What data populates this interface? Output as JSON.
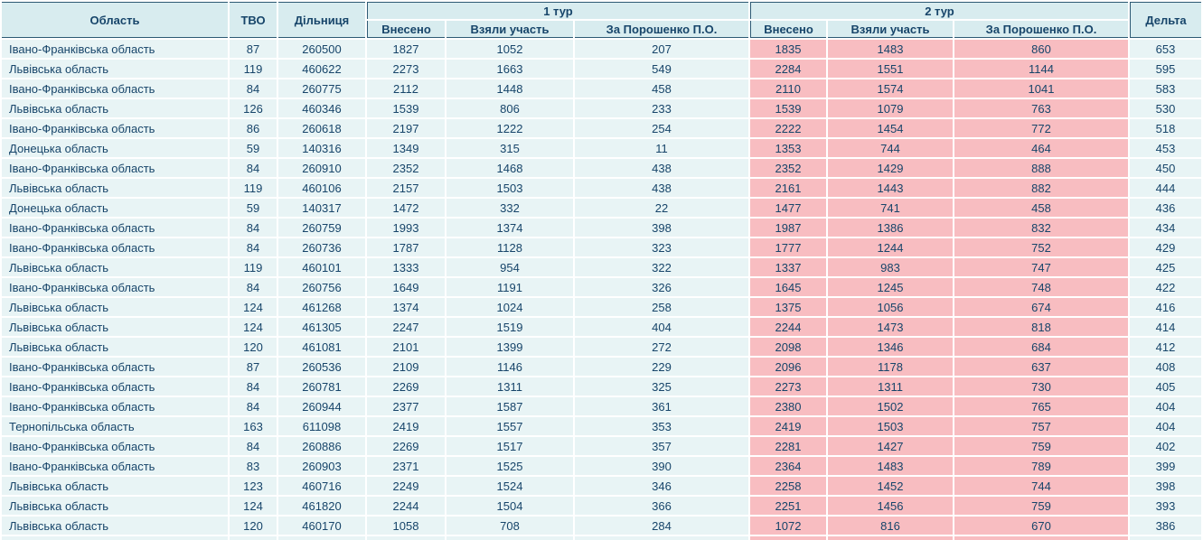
{
  "table": {
    "header": {
      "oblast": "Область",
      "tvo": "ТВО",
      "dilnytsia": "Дільниця",
      "tour1": "1 тур",
      "tour2": "2 тур",
      "vneseno1": "Внесено",
      "vzialy_uchast1": "Взяли участь",
      "za_poroshenko1": "За Порошенко П.О.",
      "vneseno2": "Внесено",
      "vzialy_uchast2": "Взяли участь",
      "za_poroshenko2": "За Порошенко П.О.",
      "delta": "Дельта"
    },
    "rows": [
      [
        "Івано-Франківська область",
        "87",
        "260500",
        "1827",
        "1052",
        "207",
        "1835",
        "1483",
        "860",
        "653"
      ],
      [
        "Львівська область",
        "119",
        "460622",
        "2273",
        "1663",
        "549",
        "2284",
        "1551",
        "1144",
        "595"
      ],
      [
        "Івано-Франківська область",
        "84",
        "260775",
        "2112",
        "1448",
        "458",
        "2110",
        "1574",
        "1041",
        "583"
      ],
      [
        "Львівська область",
        "126",
        "460346",
        "1539",
        "806",
        "233",
        "1539",
        "1079",
        "763",
        "530"
      ],
      [
        "Івано-Франківська область",
        "86",
        "260618",
        "2197",
        "1222",
        "254",
        "2222",
        "1454",
        "772",
        "518"
      ],
      [
        "Донецька область",
        "59",
        "140316",
        "1349",
        "315",
        "11",
        "1353",
        "744",
        "464",
        "453"
      ],
      [
        "Івано-Франківська область",
        "84",
        "260910",
        "2352",
        "1468",
        "438",
        "2352",
        "1429",
        "888",
        "450"
      ],
      [
        "Львівська область",
        "119",
        "460106",
        "2157",
        "1503",
        "438",
        "2161",
        "1443",
        "882",
        "444"
      ],
      [
        "Донецька область",
        "59",
        "140317",
        "1472",
        "332",
        "22",
        "1477",
        "741",
        "458",
        "436"
      ],
      [
        "Івано-Франківська область",
        "84",
        "260759",
        "1993",
        "1374",
        "398",
        "1987",
        "1386",
        "832",
        "434"
      ],
      [
        "Івано-Франківська область",
        "84",
        "260736",
        "1787",
        "1128",
        "323",
        "1777",
        "1244",
        "752",
        "429"
      ],
      [
        "Львівська область",
        "119",
        "460101",
        "1333",
        "954",
        "322",
        "1337",
        "983",
        "747",
        "425"
      ],
      [
        "Івано-Франківська область",
        "84",
        "260756",
        "1649",
        "1191",
        "326",
        "1645",
        "1245",
        "748",
        "422"
      ],
      [
        "Львівська область",
        "124",
        "461268",
        "1374",
        "1024",
        "258",
        "1375",
        "1056",
        "674",
        "416"
      ],
      [
        "Львівська область",
        "124",
        "461305",
        "2247",
        "1519",
        "404",
        "2244",
        "1473",
        "818",
        "414"
      ],
      [
        "Львівська область",
        "120",
        "461081",
        "2101",
        "1399",
        "272",
        "2098",
        "1346",
        "684",
        "412"
      ],
      [
        "Івано-Франківська область",
        "87",
        "260536",
        "2109",
        "1146",
        "229",
        "2096",
        "1178",
        "637",
        "408"
      ],
      [
        "Івано-Франківська область",
        "84",
        "260781",
        "2269",
        "1311",
        "325",
        "2273",
        "1311",
        "730",
        "405"
      ],
      [
        "Івано-Франківська область",
        "84",
        "260944",
        "2377",
        "1587",
        "361",
        "2380",
        "1502",
        "765",
        "404"
      ],
      [
        "Тернопільська область",
        "163",
        "611098",
        "2419",
        "1557",
        "353",
        "2419",
        "1503",
        "757",
        "404"
      ],
      [
        "Івано-Франківська область",
        "84",
        "260886",
        "2269",
        "1517",
        "357",
        "2281",
        "1427",
        "759",
        "402"
      ],
      [
        "Івано-Франківська область",
        "83",
        "260903",
        "2371",
        "1525",
        "390",
        "2364",
        "1483",
        "789",
        "399"
      ],
      [
        "Львівська область",
        "123",
        "460716",
        "2249",
        "1524",
        "346",
        "2258",
        "1452",
        "744",
        "398"
      ],
      [
        "Львівська область",
        "124",
        "461820",
        "2244",
        "1504",
        "366",
        "2251",
        "1456",
        "759",
        "393"
      ],
      [
        "Львівська область",
        "120",
        "460170",
        "1058",
        "708",
        "284",
        "1072",
        "816",
        "670",
        "386"
      ],
      [
        "",
        "",
        "",
        "",
        "",
        "",
        "",
        "",
        "",
        ""
      ]
    ]
  },
  "colors": {
    "header_bg": "#d8ecef",
    "row_bg": "#e8f4f5",
    "round2_highlight_bg": "#f8bdc1",
    "text": "#17456a",
    "header_border": "#2e5a74",
    "gridline": "#ffffff"
  }
}
